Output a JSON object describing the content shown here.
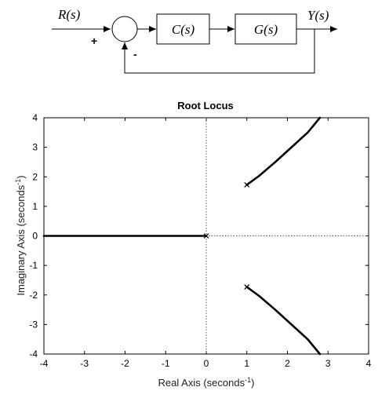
{
  "block_diagram": {
    "input_label": "R(s)",
    "output_label": "Y(s)",
    "controller_label": "C(s)",
    "plant_label": "G(s)",
    "plus_sign": "+",
    "minus_sign": "-"
  },
  "chart_data": {
    "type": "line",
    "title": "Root Locus",
    "xlabel": "Real Axis (seconds",
    "ylabel": "Imaginary Axis (seconds",
    "unit_exponent": "-1",
    "unit_close": ")",
    "xlim": [
      -4,
      4
    ],
    "ylim": [
      -4,
      4
    ],
    "xticks": [
      "-4",
      "-3",
      "-2",
      "-1",
      "0",
      "1",
      "2",
      "3",
      "4"
    ],
    "yticks": [
      "4",
      "3",
      "2",
      "1",
      "0",
      "-1",
      "-2",
      "-3",
      "-4"
    ],
    "poles": [
      {
        "x": 0,
        "y": 0
      },
      {
        "x": 1,
        "y": 1.73
      },
      {
        "x": 1,
        "y": -1.73
      }
    ],
    "series": [
      {
        "x": [
          0,
          -4
        ],
        "y": [
          0,
          0
        ]
      },
      {
        "x": [
          1,
          1.3,
          1.7,
          2.1,
          2.5,
          2.8
        ],
        "y": [
          1.73,
          2.03,
          2.5,
          3.0,
          3.5,
          4.0
        ]
      },
      {
        "x": [
          1,
          1.3,
          1.7,
          2.1,
          2.5,
          2.8
        ],
        "y": [
          -1.73,
          -2.03,
          -2.5,
          -3.0,
          -3.5,
          -4.0
        ]
      }
    ]
  }
}
